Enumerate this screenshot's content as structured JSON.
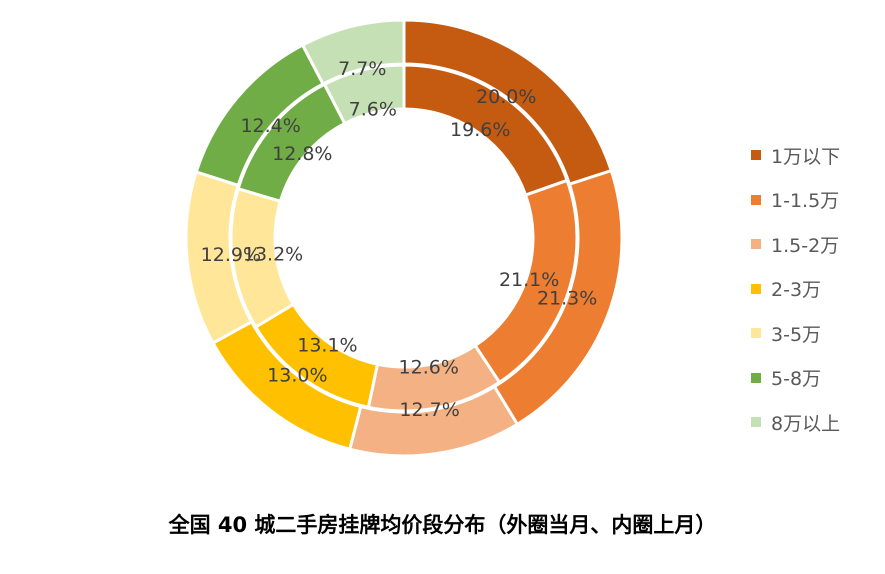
{
  "chart_data": {
    "type": "donut",
    "title": "全国 40 城二手房挂牌均价段分布（外圈当月、内圈上月）",
    "categories": [
      "1万以下",
      "1-1.5万",
      "1.5-2万",
      "2-3万",
      "3-5万",
      "5-8万",
      "8万以上"
    ],
    "series": [
      {
        "ring": "outer",
        "values": [
          20.0,
          21.3,
          12.7,
          13.0,
          12.9,
          12.4,
          7.7
        ],
        "labels": [
          "20.0%",
          "21.3%",
          "12.7%",
          "13.0%",
          "12.9%",
          "12.4%",
          "7.7%"
        ]
      },
      {
        "ring": "inner",
        "values": [
          19.6,
          21.1,
          12.6,
          13.1,
          13.2,
          12.8,
          7.6
        ],
        "labels": [
          "19.6%",
          "21.1%",
          "12.6%",
          "13.1%",
          "13.2%",
          "12.8%",
          "7.6%"
        ]
      }
    ],
    "colors": [
      "#C55A11",
      "#ED7D31",
      "#F4B183",
      "#FFC000",
      "#FFE699",
      "#70AD47",
      "#C5E0B4"
    ],
    "legend_position": "right"
  }
}
